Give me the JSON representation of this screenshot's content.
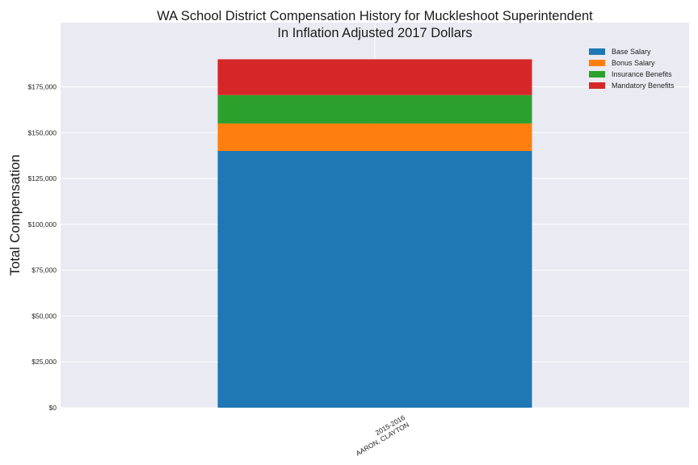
{
  "chart_data": {
    "type": "bar",
    "stacked": true,
    "title": [
      "WA School District Compensation History for Muckleshoot Superintendent",
      "In Inflation Adjusted 2017 Dollars"
    ],
    "xlabel": "",
    "ylabel": "Total Compensation",
    "categories": [
      [
        "2015-2016",
        "AARON, CLAYTON"
      ]
    ],
    "series": [
      {
        "name": "Base Salary",
        "color": "#1f77b4",
        "values": [
          140000
        ]
      },
      {
        "name": "Bonus Salary",
        "color": "#ff7f0e",
        "values": [
          15000
        ]
      },
      {
        "name": "Insurance Benefits",
        "color": "#2ca02c",
        "values": [
          15500
        ]
      },
      {
        "name": "Mandatory Benefits",
        "color": "#d62728",
        "values": [
          19500
        ]
      }
    ],
    "yticks": [
      0,
      25000,
      50000,
      75000,
      100000,
      125000,
      150000,
      175000
    ],
    "ytick_labels": [
      "$0",
      "$25,000",
      "$50,000",
      "$75,000",
      "$100,000",
      "$125,000",
      "$150,000",
      "$175,000"
    ],
    "ylim": [
      0,
      210000
    ],
    "grid": true,
    "legend_position": "top-right",
    "background_color": "#eaeaf2"
  }
}
